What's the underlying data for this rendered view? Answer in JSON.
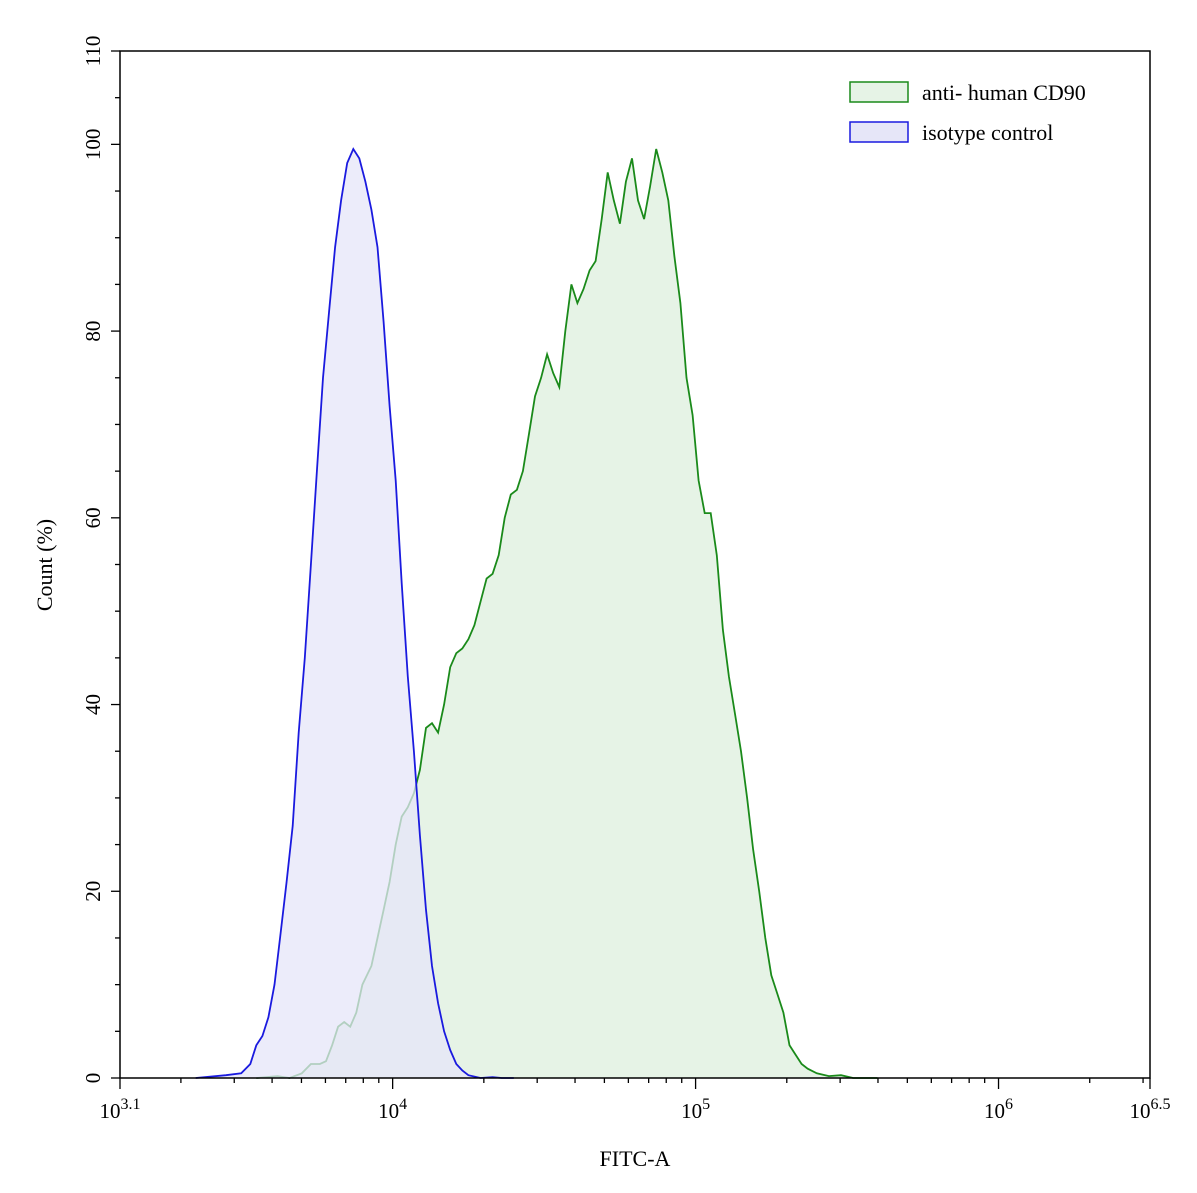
{
  "chart_data": {
    "type": "area",
    "title": "",
    "xlabel": "FITC-A",
    "ylabel": "Count  (%)",
    "x_scale": "log10",
    "xlim": [
      3.1,
      6.5
    ],
    "ylim": [
      0,
      110
    ],
    "grid": false,
    "legend_position": "top-right",
    "x_ticks": [
      {
        "exp": 3.1,
        "base": "10",
        "sup": "3.1"
      },
      {
        "exp": 4,
        "base": "10",
        "sup": "4"
      },
      {
        "exp": 5,
        "base": "10",
        "sup": "5"
      },
      {
        "exp": 6,
        "base": "10",
        "sup": "6"
      },
      {
        "exp": 6.5,
        "base": "10",
        "sup": "6.5"
      }
    ],
    "y_ticks": [
      0,
      20,
      40,
      60,
      80,
      100,
      110
    ],
    "series": [
      {
        "name": "anti- human CD90",
        "stroke": "#1a8a1a",
        "fill": "#e6f3e6",
        "points": [
          [
            3.55,
            0
          ],
          [
            3.62,
            0.2
          ],
          [
            3.66,
            0
          ],
          [
            3.7,
            0.5
          ],
          [
            3.73,
            1.5
          ],
          [
            3.76,
            1.5
          ],
          [
            3.78,
            1.8
          ],
          [
            3.8,
            3.5
          ],
          [
            3.82,
            5.5
          ],
          [
            3.84,
            6.0
          ],
          [
            3.86,
            5.5
          ],
          [
            3.88,
            7.0
          ],
          [
            3.9,
            10.0
          ],
          [
            3.93,
            12.0
          ],
          [
            3.95,
            15.0
          ],
          [
            3.97,
            18.0
          ],
          [
            3.99,
            21.0
          ],
          [
            4.01,
            25.0
          ],
          [
            4.03,
            28.0
          ],
          [
            4.05,
            29.0
          ],
          [
            4.07,
            30.5
          ],
          [
            4.09,
            33.0
          ],
          [
            4.11,
            37.5
          ],
          [
            4.13,
            38.0
          ],
          [
            4.15,
            37.0
          ],
          [
            4.17,
            40.0
          ],
          [
            4.19,
            44.0
          ],
          [
            4.21,
            45.5
          ],
          [
            4.23,
            46.0
          ],
          [
            4.25,
            47.0
          ],
          [
            4.27,
            48.5
          ],
          [
            4.29,
            51.0
          ],
          [
            4.31,
            53.5
          ],
          [
            4.33,
            54.0
          ],
          [
            4.35,
            56.0
          ],
          [
            4.37,
            60.0
          ],
          [
            4.39,
            62.5
          ],
          [
            4.41,
            63.0
          ],
          [
            4.43,
            65.0
          ],
          [
            4.45,
            69.0
          ],
          [
            4.47,
            73.0
          ],
          [
            4.49,
            75.0
          ],
          [
            4.51,
            77.5
          ],
          [
            4.53,
            75.5
          ],
          [
            4.55,
            74.0
          ],
          [
            4.57,
            80.0
          ],
          [
            4.59,
            85.0
          ],
          [
            4.61,
            83.0
          ],
          [
            4.63,
            84.5
          ],
          [
            4.65,
            86.5
          ],
          [
            4.67,
            87.5
          ],
          [
            4.69,
            92.0
          ],
          [
            4.71,
            97.0
          ],
          [
            4.73,
            94.0
          ],
          [
            4.75,
            91.5
          ],
          [
            4.77,
            96.0
          ],
          [
            4.79,
            98.5
          ],
          [
            4.81,
            94.0
          ],
          [
            4.83,
            92.0
          ],
          [
            4.85,
            95.5
          ],
          [
            4.87,
            99.5
          ],
          [
            4.89,
            97.0
          ],
          [
            4.91,
            94.0
          ],
          [
            4.93,
            88.0
          ],
          [
            4.95,
            83.0
          ],
          [
            4.97,
            75.0
          ],
          [
            4.99,
            71.0
          ],
          [
            5.01,
            64.0
          ],
          [
            5.03,
            60.5
          ],
          [
            5.05,
            60.5
          ],
          [
            5.07,
            56.0
          ],
          [
            5.09,
            48.0
          ],
          [
            5.11,
            43.0
          ],
          [
            5.13,
            39.0
          ],
          [
            5.15,
            35.0
          ],
          [
            5.17,
            30.0
          ],
          [
            5.19,
            24.5
          ],
          [
            5.21,
            20.0
          ],
          [
            5.23,
            15.0
          ],
          [
            5.25,
            11.0
          ],
          [
            5.27,
            9.0
          ],
          [
            5.29,
            7.0
          ],
          [
            5.31,
            3.5
          ],
          [
            5.33,
            2.5
          ],
          [
            5.35,
            1.5
          ],
          [
            5.37,
            1.0
          ],
          [
            5.4,
            0.5
          ],
          [
            5.44,
            0.2
          ],
          [
            5.48,
            0.3
          ],
          [
            5.52,
            0
          ],
          [
            5.56,
            0
          ],
          [
            5.6,
            0
          ]
        ]
      },
      {
        "name": "isotype control",
        "stroke": "#1a1adf",
        "fill": "#e6e6f8",
        "points": [
          [
            3.35,
            0
          ],
          [
            3.45,
            0.3
          ],
          [
            3.5,
            0.5
          ],
          [
            3.53,
            1.5
          ],
          [
            3.55,
            3.5
          ],
          [
            3.57,
            4.5
          ],
          [
            3.59,
            6.5
          ],
          [
            3.61,
            10.0
          ],
          [
            3.63,
            15.5
          ],
          [
            3.65,
            21.0
          ],
          [
            3.67,
            27.0
          ],
          [
            3.69,
            37.0
          ],
          [
            3.71,
            45.0
          ],
          [
            3.73,
            55.0
          ],
          [
            3.75,
            65.0
          ],
          [
            3.77,
            75.0
          ],
          [
            3.79,
            82.0
          ],
          [
            3.81,
            89.0
          ],
          [
            3.83,
            94.0
          ],
          [
            3.85,
            98.0
          ],
          [
            3.87,
            99.5
          ],
          [
            3.89,
            98.5
          ],
          [
            3.91,
            96.0
          ],
          [
            3.93,
            93.0
          ],
          [
            3.95,
            89.0
          ],
          [
            3.97,
            81.0
          ],
          [
            3.99,
            72.0
          ],
          [
            4.01,
            64.0
          ],
          [
            4.03,
            53.0
          ],
          [
            4.05,
            43.0
          ],
          [
            4.07,
            35.0
          ],
          [
            4.09,
            26.0
          ],
          [
            4.11,
            18.0
          ],
          [
            4.13,
            12.0
          ],
          [
            4.15,
            8.0
          ],
          [
            4.17,
            5.0
          ],
          [
            4.19,
            3.0
          ],
          [
            4.21,
            1.5
          ],
          [
            4.23,
            0.8
          ],
          [
            4.25,
            0.3
          ],
          [
            4.29,
            0
          ],
          [
            4.33,
            0.1
          ],
          [
            4.36,
            0
          ],
          [
            4.4,
            0
          ]
        ]
      }
    ]
  }
}
